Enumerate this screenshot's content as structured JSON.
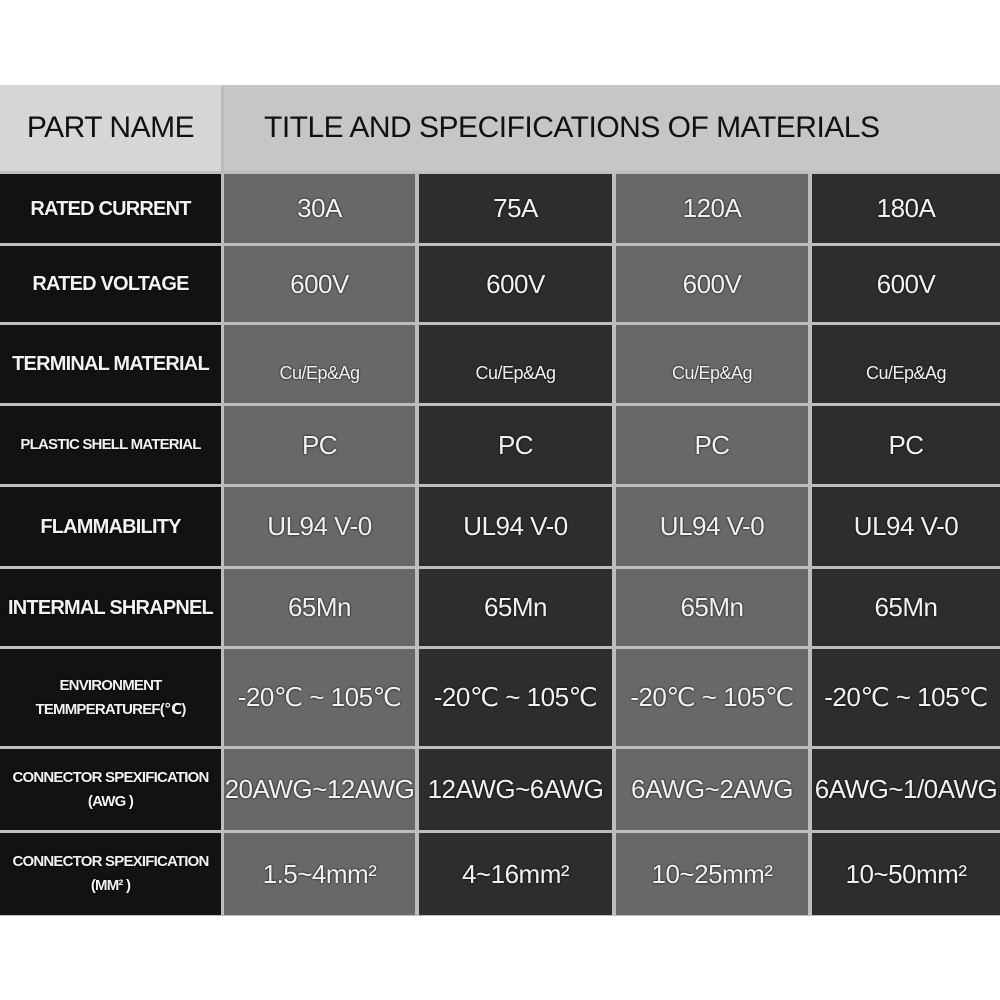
{
  "header": {
    "part_name": "PART NAME",
    "title": "TITLE AND SPECIFICATIONS OF MATERIALS"
  },
  "rows": [
    {
      "label": "RATED CURRENT",
      "values": [
        "30A",
        "75A",
        "120A",
        "180A"
      ]
    },
    {
      "label": "RATED VOLTAGE",
      "values": [
        "600V",
        "600V",
        "600V",
        "600V"
      ]
    },
    {
      "label": "TERMINAL MATERIAL",
      "values": [
        "Cu/Ep&Ag",
        "Cu/Ep&Ag",
        "Cu/Ep&Ag",
        "Cu/Ep&Ag"
      ]
    },
    {
      "label": "PLASTIC SHELL MATERIAL",
      "values": [
        "PC",
        "PC",
        "PC",
        "PC"
      ]
    },
    {
      "label": "FLAMMABILITY",
      "values": [
        "UL94 V-0",
        "UL94 V-0",
        "UL94 V-0",
        "UL94 V-0"
      ]
    },
    {
      "label": "INTERMAL SHRAPNEL",
      "values": [
        "65Mn",
        "65Mn",
        "65Mn",
        "65Mn"
      ]
    },
    {
      "label": "ENVIRONMENT TEMMPERATUREF(℃)",
      "values": [
        "-20℃ ~ 105℃",
        "-20℃ ~ 105℃",
        "-20℃ ~ 105℃",
        "-20℃ ~ 105℃"
      ]
    },
    {
      "label": "CONNECTOR SPEXIFICATION (AWG )",
      "values": [
        "20AWG~12AWG",
        "12AWG~6AWG",
        "6AWG~2AWG",
        "6AWG~1/0AWG"
      ]
    },
    {
      "label": "CONNECTOR SPEXIFICATION (MM² )",
      "values": [
        "1.5~4mm²",
        "4~16mm²",
        "10~25mm²",
        "10~50mm²"
      ]
    }
  ],
  "colors": {
    "label_bg": "#121212",
    "light_cell": "#686868",
    "dark_cell": "#2d2d2d",
    "header_bg": "#c6c6c6",
    "grid": "#bdbdbd"
  }
}
